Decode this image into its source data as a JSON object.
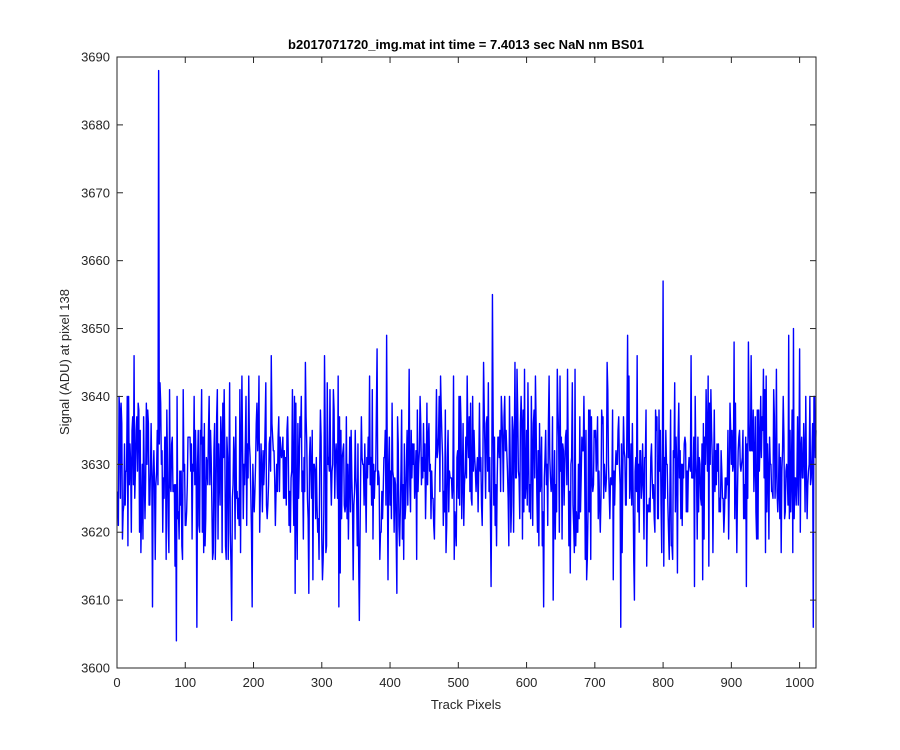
{
  "chart_data": {
    "type": "line",
    "title": "b2017071720_img.mat int time = 7.4013 sec  NaN nm BS01",
    "xlabel": "Track Pixels",
    "ylabel": "Signal (ADU) at pixel 138",
    "xlim": [
      0,
      1024
    ],
    "ylim": [
      3600,
      3690
    ],
    "xticks": [
      0,
      100,
      200,
      300,
      400,
      500,
      600,
      700,
      800,
      900,
      1000
    ],
    "yticks": [
      3600,
      3610,
      3620,
      3630,
      3640,
      3650,
      3660,
      3670,
      3680,
      3690
    ],
    "grid": false,
    "legend": "none",
    "series": [
      {
        "color": "#0000ff",
        "n_points": 1024,
        "x_start": 1,
        "x_step": 1,
        "mean": 3629,
        "stdev": 7,
        "min": 3604,
        "max": 3688,
        "peaks": [
          {
            "x": 61,
            "y": 3688
          },
          {
            "x": 87,
            "y": 3604
          },
          {
            "x": 117,
            "y": 3606
          },
          {
            "x": 168,
            "y": 3607
          },
          {
            "x": 52,
            "y": 3609
          },
          {
            "x": 550,
            "y": 3655
          },
          {
            "x": 800,
            "y": 3657
          },
          {
            "x": 738,
            "y": 3606
          },
          {
            "x": 1020,
            "y": 3606
          },
          {
            "x": 355,
            "y": 3607
          },
          {
            "x": 904,
            "y": 3648
          },
          {
            "x": 625,
            "y": 3609
          }
        ]
      }
    ]
  }
}
